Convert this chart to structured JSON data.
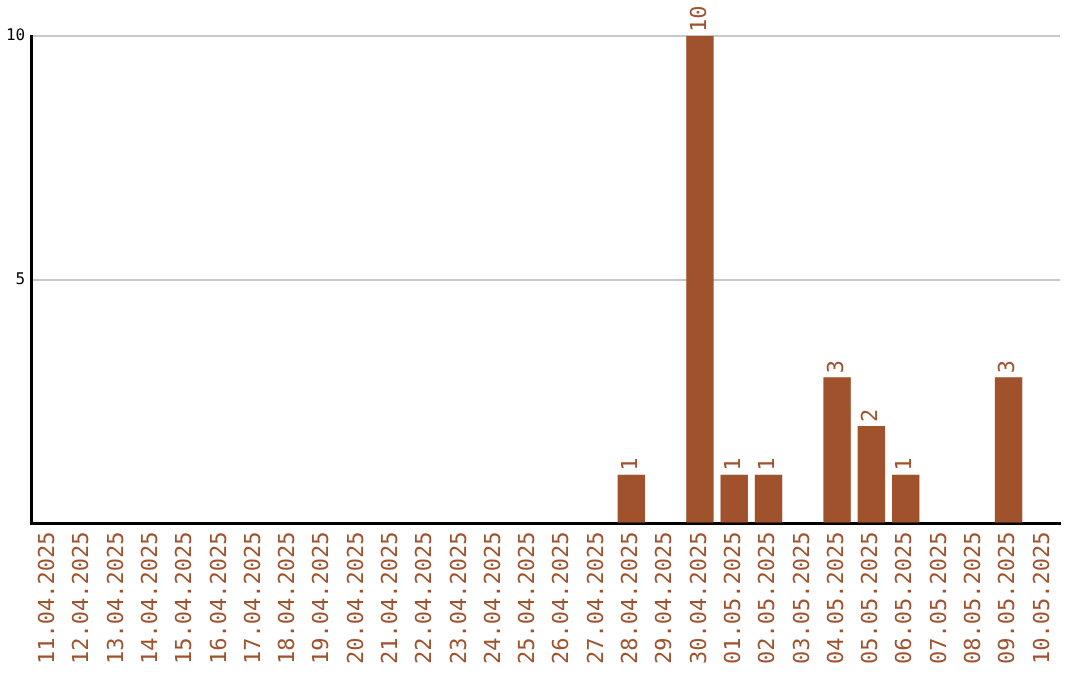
{
  "chart_data": {
    "type": "bar",
    "categories": [
      "11.04.2025",
      "12.04.2025",
      "13.04.2025",
      "14.04.2025",
      "15.04.2025",
      "16.04.2025",
      "17.04.2025",
      "18.04.2025",
      "19.04.2025",
      "20.04.2025",
      "21.04.2025",
      "22.04.2025",
      "23.04.2025",
      "24.04.2025",
      "25.04.2025",
      "26.04.2025",
      "27.04.2025",
      "28.04.2025",
      "29.04.2025",
      "30.04.2025",
      "01.05.2025",
      "02.05.2025",
      "03.05.2025",
      "04.05.2025",
      "05.05.2025",
      "06.05.2025",
      "07.05.2025",
      "08.05.2025",
      "09.05.2025",
      "10.05.2025"
    ],
    "values": [
      0,
      0,
      0,
      0,
      0,
      0,
      0,
      0,
      0,
      0,
      0,
      0,
      0,
      0,
      0,
      0,
      0,
      1,
      0,
      10,
      1,
      1,
      0,
      3,
      2,
      1,
      0,
      0,
      3,
      0
    ],
    "value_labels": [
      null,
      null,
      null,
      null,
      null,
      null,
      null,
      null,
      null,
      null,
      null,
      null,
      null,
      null,
      null,
      null,
      null,
      "1",
      null,
      "10",
      "1",
      "1",
      null,
      "3",
      "2",
      "1",
      null,
      null,
      "3",
      null
    ],
    "color": "#a0522d",
    "ylim": [
      0,
      10
    ],
    "yticks": [
      {
        "value": 0,
        "label": null
      },
      5,
      10
    ],
    "grid": "y"
  }
}
